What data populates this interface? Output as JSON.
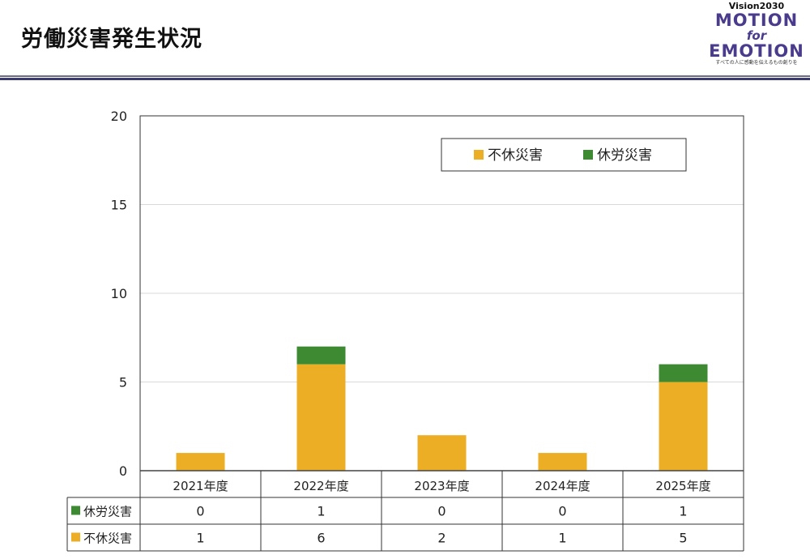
{
  "header": {
    "title": "労働災害発生状況",
    "logo": {
      "line1": "Vision2030",
      "line2": "MOTION",
      "line3": "for",
      "line4": "EMOTION",
      "tagline": "すべての人に感動を伝えるもの創りを"
    }
  },
  "colors": {
    "fukyu": "#EBAE24",
    "kyuro": "#3E8A33",
    "grid": "#d9d9d9",
    "border": "#333333"
  },
  "chart_data": {
    "type": "bar",
    "stacked": true,
    "categories": [
      "2021年度",
      "2022年度",
      "2023年度",
      "2024年度",
      "2025年度"
    ],
    "series": [
      {
        "name": "不休災害",
        "color": "#EBAE24",
        "values": [
          1,
          6,
          2,
          1,
          5
        ]
      },
      {
        "name": "休労災害",
        "color": "#3E8A33",
        "values": [
          0,
          1,
          0,
          0,
          1
        ]
      }
    ],
    "ylim": [
      0,
      20
    ],
    "yticks": [
      0,
      5,
      10,
      15,
      20
    ],
    "grid": true,
    "legend": "top-right",
    "data_table": true
  }
}
